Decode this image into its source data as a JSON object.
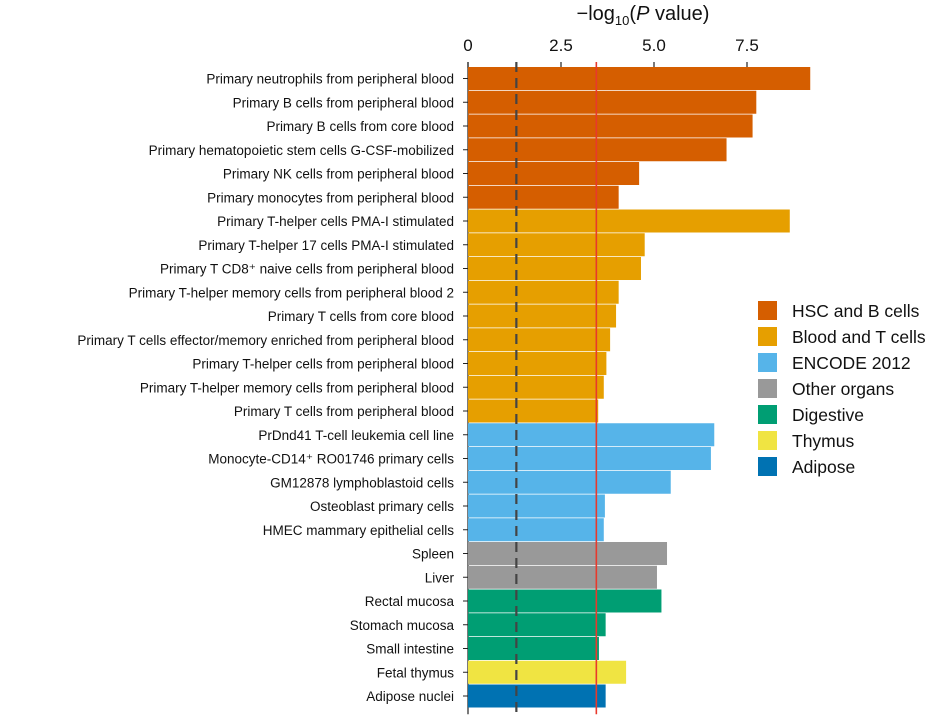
{
  "chart_data": {
    "type": "bar",
    "orientation": "horizontal",
    "title": "",
    "xlabel": "−log10(P value)",
    "xlabel_parts": {
      "prefix": "−log",
      "subscript": "10",
      "open": "(",
      "italic": "P",
      "suffix": " value)"
    },
    "xlim": [
      0,
      9.4
    ],
    "xticks": [
      0,
      2.5,
      5.0,
      7.5
    ],
    "xtick_labels": [
      "0",
      "2.5",
      "5.0",
      "7.5"
    ],
    "thresholds": [
      {
        "name": "dashed-threshold",
        "value": 1.3,
        "style": "dashed",
        "color": "#444444"
      },
      {
        "name": "red-threshold",
        "value": 3.45,
        "style": "solid",
        "color": "#e8392c"
      }
    ],
    "legend_position": "right",
    "groups": [
      {
        "name": "HSC and B cells",
        "color": "#d55e00"
      },
      {
        "name": "Blood and T cells",
        "color": "#e69f00"
      },
      {
        "name": "ENCODE 2012",
        "color": "#56b4e9"
      },
      {
        "name": "Other organs",
        "color": "#999999"
      },
      {
        "name": "Digestive",
        "color": "#009e73"
      },
      {
        "name": "Thymus",
        "color": "#f0e442"
      },
      {
        "name": "Adipose",
        "color": "#0072b2"
      }
    ],
    "bars": [
      {
        "label": "Primary neutrophils from peripheral blood",
        "value": 9.2,
        "group": 0
      },
      {
        "label": "Primary B cells from peripheral blood",
        "value": 7.75,
        "group": 0
      },
      {
        "label": "Primary B cells from core blood",
        "value": 7.65,
        "group": 0
      },
      {
        "label": "Primary hematopoietic stem cells G-CSF-mobilized",
        "value": 6.95,
        "group": 0
      },
      {
        "label": "Primary NK cells from peripheral blood",
        "value": 4.6,
        "group": 0
      },
      {
        "label": "Primary monocytes from peripheral blood",
        "value": 4.05,
        "group": 0
      },
      {
        "label": "Primary T-helper cells PMA-I stimulated",
        "value": 8.65,
        "group": 1
      },
      {
        "label": "Primary T-helper 17 cells PMA-I stimulated",
        "value": 4.75,
        "group": 1
      },
      {
        "label": "Primary T CD8⁺ naive cells from peripheral blood",
        "value": 4.65,
        "group": 1
      },
      {
        "label": "Primary T-helper memory cells from peripheral blood 2",
        "value": 4.05,
        "group": 1
      },
      {
        "label": "Primary T cells from core blood",
        "value": 3.98,
        "group": 1
      },
      {
        "label": "Primary T cells effector/memory enriched from peripheral blood",
        "value": 3.82,
        "group": 1
      },
      {
        "label": "Primary T-helper cells from peripheral blood",
        "value": 3.72,
        "group": 1
      },
      {
        "label": "Primary T-helper memory cells from peripheral blood",
        "value": 3.65,
        "group": 1
      },
      {
        "label": "Primary T cells from peripheral blood",
        "value": 3.5,
        "group": 1
      },
      {
        "label": "PrDnd41 T-cell leukemia cell line",
        "value": 6.62,
        "group": 2
      },
      {
        "label": "Monocyte-CD14⁺ RO01746 primary cells",
        "value": 6.53,
        "group": 2
      },
      {
        "label": "GM12878 lymphoblastoid cells",
        "value": 5.45,
        "group": 2
      },
      {
        "label": "Osteoblast primary cells",
        "value": 3.68,
        "group": 2
      },
      {
        "label": "HMEC mammary epithelial cells",
        "value": 3.65,
        "group": 2
      },
      {
        "label": "Spleen",
        "value": 5.35,
        "group": 3
      },
      {
        "label": "Liver",
        "value": 5.08,
        "group": 3
      },
      {
        "label": "Rectal mucosa",
        "value": 5.2,
        "group": 4
      },
      {
        "label": "Stomach mucosa",
        "value": 3.7,
        "group": 4
      },
      {
        "label": "Small intestine",
        "value": 3.52,
        "group": 4
      },
      {
        "label": "Fetal thymus",
        "value": 4.25,
        "group": 5
      },
      {
        "label": "Adipose nuclei",
        "value": 3.7,
        "group": 6
      }
    ]
  }
}
